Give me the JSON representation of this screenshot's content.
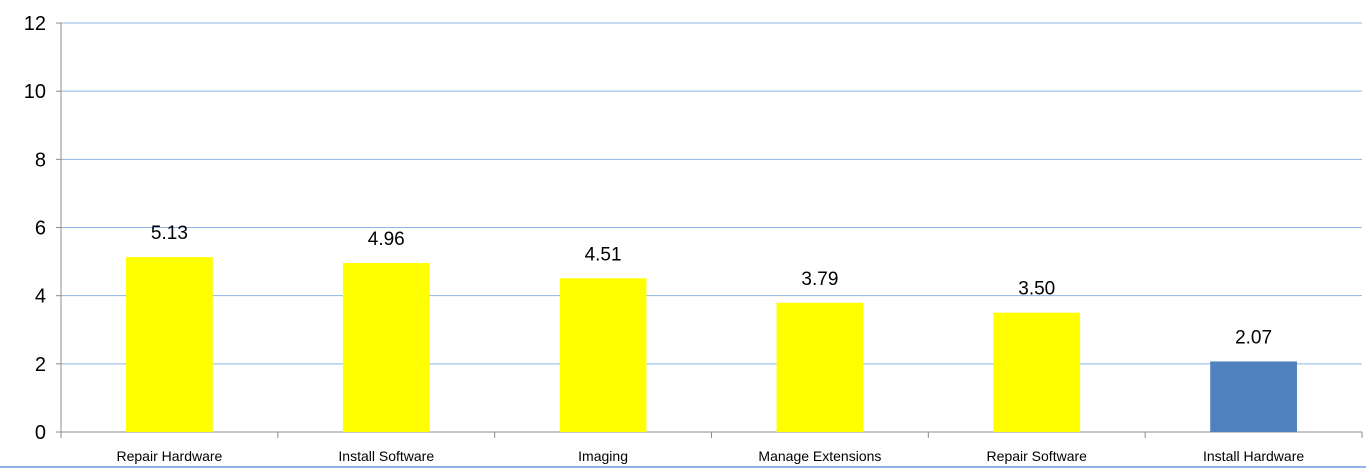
{
  "chart_data": {
    "type": "bar",
    "categories": [
      "Repair Hardware",
      "Install Software",
      "Imaging",
      "Manage Extensions",
      "Repair Software",
      "Install Hardware"
    ],
    "values": [
      5.13,
      4.96,
      4.51,
      3.79,
      3.5,
      2.07
    ],
    "data_labels": [
      "5.13",
      "4.96",
      "4.51",
      "3.79",
      "3.50",
      "2.07"
    ],
    "bar_colors": [
      "#ffff00",
      "#ffff00",
      "#ffff00",
      "#ffff00",
      "#ffff00",
      "#4f81bd"
    ],
    "ylim": [
      0,
      12
    ],
    "yticks": [
      0,
      2,
      4,
      6,
      8,
      10,
      12
    ],
    "ytick_labels": [
      "0",
      "2",
      "4",
      "6",
      "8",
      "10",
      "12"
    ],
    "grid": true,
    "grid_color": "#8eb4e3",
    "title": "",
    "xlabel": "",
    "ylabel": ""
  }
}
